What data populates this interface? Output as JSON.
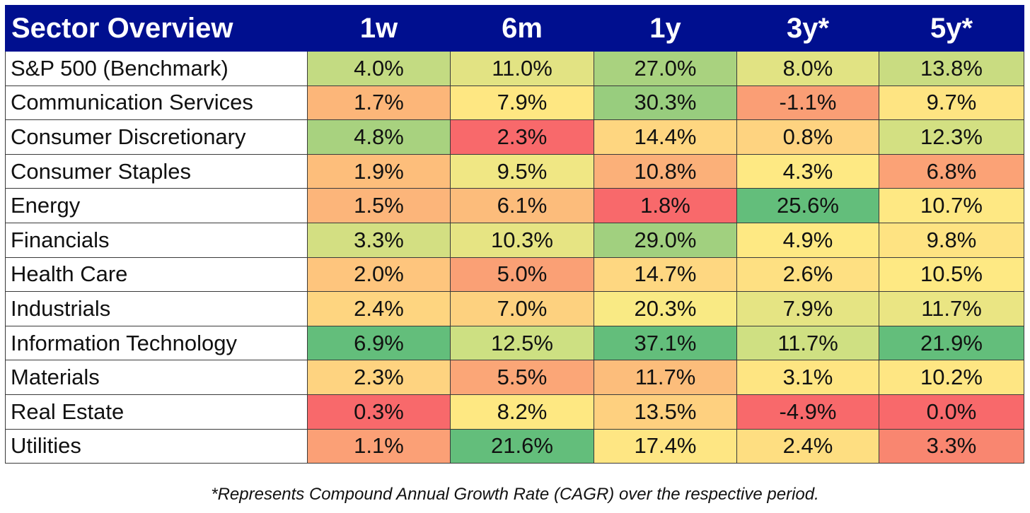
{
  "table_header": {
    "title": "Sector Overview",
    "periods": [
      "1w",
      "6m",
      "1y",
      "3y*",
      "5y*"
    ]
  },
  "chart_data": {
    "type": "table",
    "title": "Sector Overview",
    "columns": [
      "1w",
      "6m",
      "1y",
      "3y*",
      "5y*"
    ],
    "rows": [
      {
        "sector": "S&P 500 (Benchmark)",
        "values": [
          4.0,
          11.0,
          27.0,
          8.0,
          13.8
        ],
        "labels": [
          "4.0%",
          "11.0%",
          "27.0%",
          "8.0%",
          "13.8%"
        ]
      },
      {
        "sector": "Communication Services",
        "values": [
          1.7,
          7.9,
          30.3,
          -1.1,
          9.7
        ],
        "labels": [
          "1.7%",
          "7.9%",
          "30.3%",
          "-1.1%",
          "9.7%"
        ]
      },
      {
        "sector": "Consumer Discretionary",
        "values": [
          4.8,
          2.3,
          14.4,
          0.8,
          12.3
        ],
        "labels": [
          "4.8%",
          "2.3%",
          "14.4%",
          "0.8%",
          "12.3%"
        ]
      },
      {
        "sector": "Consumer Staples",
        "values": [
          1.9,
          9.5,
          10.8,
          4.3,
          6.8
        ],
        "labels": [
          "1.9%",
          "9.5%",
          "10.8%",
          "4.3%",
          "6.8%"
        ]
      },
      {
        "sector": "Energy",
        "values": [
          1.5,
          6.1,
          1.8,
          25.6,
          10.7
        ],
        "labels": [
          "1.5%",
          "6.1%",
          "1.8%",
          "25.6%",
          "10.7%"
        ]
      },
      {
        "sector": "Financials",
        "values": [
          3.3,
          10.3,
          29.0,
          4.9,
          9.8
        ],
        "labels": [
          "3.3%",
          "10.3%",
          "29.0%",
          "4.9%",
          "9.8%"
        ]
      },
      {
        "sector": "Health Care",
        "values": [
          2.0,
          5.0,
          14.7,
          2.6,
          10.5
        ],
        "labels": [
          "2.0%",
          "5.0%",
          "14.7%",
          "2.6%",
          "10.5%"
        ]
      },
      {
        "sector": "Industrials",
        "values": [
          2.4,
          7.0,
          20.3,
          7.9,
          11.7
        ],
        "labels": [
          "2.4%",
          "7.0%",
          "20.3%",
          "7.9%",
          "11.7%"
        ]
      },
      {
        "sector": "Information Technology",
        "values": [
          6.9,
          12.5,
          37.1,
          11.7,
          21.9
        ],
        "labels": [
          "6.9%",
          "12.5%",
          "37.1%",
          "11.7%",
          "21.9%"
        ]
      },
      {
        "sector": "Materials",
        "values": [
          2.3,
          5.5,
          11.7,
          3.1,
          10.2
        ],
        "labels": [
          "2.3%",
          "5.5%",
          "11.7%",
          "3.1%",
          "10.2%"
        ]
      },
      {
        "sector": "Real Estate",
        "values": [
          0.3,
          8.2,
          13.5,
          -4.9,
          0.0
        ],
        "labels": [
          "0.3%",
          "8.2%",
          "13.5%",
          "-4.9%",
          "0.0%"
        ]
      },
      {
        "sector": "Utilities",
        "values": [
          1.1,
          21.6,
          17.4,
          2.4,
          3.3
        ],
        "labels": [
          "1.1%",
          "21.6%",
          "17.4%",
          "2.4%",
          "3.3%"
        ]
      }
    ],
    "color_scale": {
      "low": "#f8696b",
      "mid": "#ffeb84",
      "high": "#63be7b"
    },
    "cell_colors": [
      [
        "#c3db82",
        "#e2e383",
        "#a9d27f",
        "#e1e383",
        "#c9dc81"
      ],
      [
        "#fcb679",
        "#fee782",
        "#98cd7e",
        "#fa9e75",
        "#fee482"
      ],
      [
        "#a8d27f",
        "#f8696b",
        "#fed680",
        "#fed380",
        "#d3e082"
      ],
      [
        "#fdbe7b",
        "#f0e784",
        "#fbb079",
        "#fee983",
        "#fba276"
      ],
      [
        "#fcb57a",
        "#fcbc7b",
        "#f8696b",
        "#63be7b",
        "#fee883"
      ],
      [
        "#d3df82",
        "#e6e483",
        "#a1d07f",
        "#fee983",
        "#fee382"
      ],
      [
        "#fec57d",
        "#faa075",
        "#fed781",
        "#fee082",
        "#fee983"
      ],
      [
        "#fed580",
        "#fdd17f",
        "#f9ea84",
        "#e5e483",
        "#eae583"
      ],
      [
        "#63be7b",
        "#cde082",
        "#63be7b",
        "#cfe082",
        "#63be7b"
      ],
      [
        "#fed380",
        "#fba677",
        "#fcbd7b",
        "#fee582",
        "#fee683"
      ],
      [
        "#f8696b",
        "#fee882",
        "#fed07f",
        "#f8696b",
        "#f8696b"
      ],
      [
        "#fba076",
        "#63be7b",
        "#fee683",
        "#fede81",
        "#f98670"
      ]
    ]
  },
  "footnote": "*Represents Compound Annual Growth Rate (CAGR) over the respective period."
}
